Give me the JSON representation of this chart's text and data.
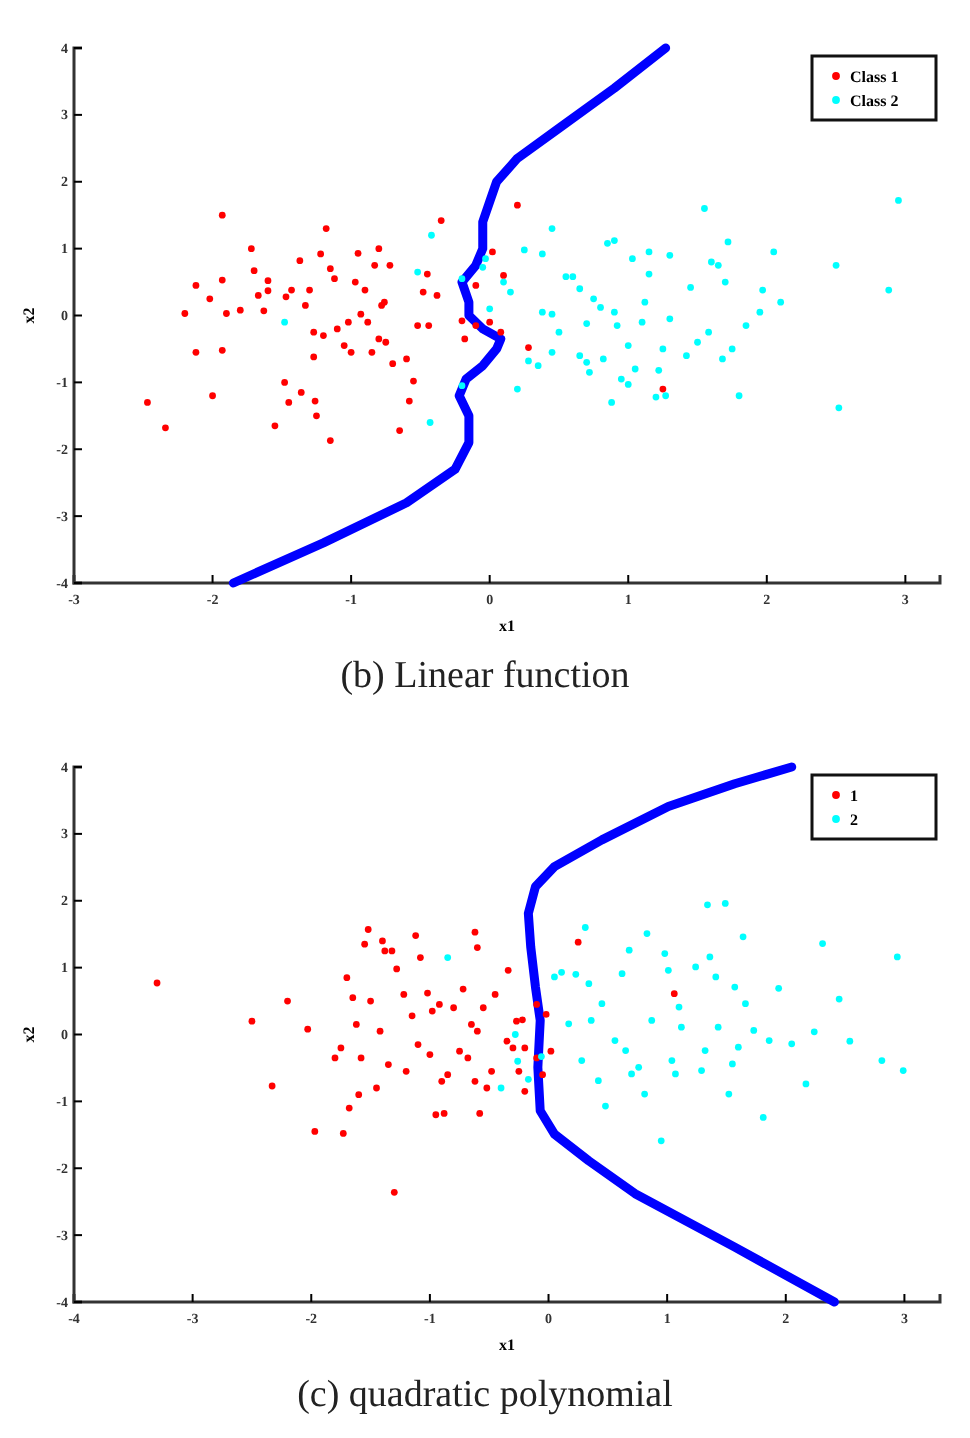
{
  "chart_data": [
    {
      "type": "scatter",
      "title": "(b) Linear function",
      "xlabel": "x1",
      "ylabel": "x2",
      "xlim": [
        -3,
        3.25
      ],
      "ylim": [
        -4,
        4
      ],
      "xticks": [
        -3,
        -2,
        -1,
        0,
        1,
        2,
        3
      ],
      "yticks": [
        -4,
        -3,
        -2,
        -1,
        0,
        1,
        2,
        3,
        4
      ],
      "legend": "top right",
      "marker": "circle",
      "series": [
        {
          "name": "Class 1",
          "color": "#ff0000",
          "x": [
            -2.47,
            -2.34,
            -2.2,
            -2.12,
            -2.12,
            -2.02,
            -2.0,
            -1.93,
            -1.93,
            -1.93,
            -1.9,
            -1.8,
            -1.72,
            -1.7,
            -1.67,
            -1.63,
            -1.6,
            -1.6,
            -1.55,
            -1.48,
            -1.47,
            -1.45,
            -1.43,
            -1.37,
            -1.36,
            -1.33,
            -1.3,
            -1.27,
            -1.27,
            -1.26,
            -1.25,
            -1.22,
            -1.2,
            -1.18,
            -1.15,
            -1.15,
            -1.12,
            -1.1,
            -1.05,
            -1.02,
            -1.0,
            -0.97,
            -0.95,
            -0.93,
            -0.9,
            -0.88,
            -0.85,
            -0.83,
            -0.8,
            -0.8,
            -0.78,
            -0.76,
            -0.75,
            -0.72,
            -0.7,
            -0.65,
            -0.6,
            -0.58,
            -0.55,
            -0.52,
            -0.48,
            -0.45,
            -0.44,
            -0.38,
            -0.35,
            -0.2,
            -0.18,
            -0.1,
            -0.1,
            0.0,
            0.02,
            0.1,
            0.08,
            0.2,
            0.28,
            1.25
          ],
          "values": [
            -1.3,
            -1.68,
            0.03,
            0.45,
            -0.55,
            0.25,
            -1.2,
            1.5,
            0.53,
            -0.52,
            0.03,
            0.08,
            1.0,
            0.67,
            0.3,
            0.07,
            0.52,
            0.37,
            -1.65,
            -1.0,
            0.28,
            -1.3,
            0.38,
            0.82,
            -1.15,
            0.15,
            0.38,
            -0.62,
            -0.25,
            -1.28,
            -1.5,
            0.92,
            -0.3,
            1.3,
            0.7,
            -1.87,
            0.55,
            -0.2,
            -0.45,
            -0.1,
            -0.55,
            0.5,
            0.93,
            0.02,
            0.38,
            -0.1,
            -0.55,
            0.75,
            1.0,
            -0.35,
            0.15,
            0.2,
            -0.4,
            0.75,
            -0.72,
            -1.72,
            -0.65,
            -1.28,
            -0.98,
            -0.15,
            0.35,
            0.62,
            -0.15,
            0.3,
            1.42,
            -0.08,
            -0.35,
            0.45,
            -0.15,
            -0.1,
            0.95,
            0.6,
            -0.25,
            1.65,
            -0.48,
            -1.1
          ]
        },
        {
          "name": "Class 2",
          "color": "#00ffff",
          "x": [
            -1.48,
            -0.52,
            -0.42,
            -0.43,
            -0.2,
            -0.2,
            -0.05,
            0.0,
            -0.03,
            0.1,
            0.15,
            0.2,
            0.25,
            0.28,
            0.35,
            0.38,
            0.38,
            0.45,
            0.45,
            0.45,
            0.5,
            0.55,
            0.6,
            0.65,
            0.65,
            0.7,
            0.7,
            0.72,
            0.75,
            0.8,
            0.82,
            0.85,
            0.88,
            0.9,
            0.9,
            0.92,
            0.95,
            1.0,
            1.0,
            1.03,
            1.05,
            1.1,
            1.12,
            1.15,
            1.15,
            1.2,
            1.22,
            1.25,
            1.27,
            1.3,
            1.3,
            1.42,
            1.45,
            1.5,
            1.55,
            1.58,
            1.6,
            1.65,
            1.68,
            1.7,
            1.72,
            1.75,
            1.8,
            1.85,
            1.95,
            1.97,
            2.05,
            2.1,
            2.5,
            2.52,
            2.88,
            2.95
          ],
          "values": [
            -0.1,
            0.65,
            1.2,
            -1.6,
            0.55,
            -1.05,
            0.72,
            0.1,
            0.85,
            0.5,
            0.35,
            -1.1,
            0.98,
            -0.68,
            -0.75,
            0.92,
            0.05,
            1.3,
            -0.55,
            0.02,
            -0.25,
            0.58,
            0.58,
            0.4,
            -0.6,
            -0.12,
            -0.7,
            -0.85,
            0.25,
            0.12,
            -0.65,
            1.08,
            -1.3,
            0.05,
            1.12,
            -0.15,
            -0.95,
            -0.45,
            -1.03,
            0.85,
            -0.8,
            -0.1,
            0.2,
            0.95,
            0.62,
            -1.22,
            -0.82,
            -0.5,
            -1.2,
            0.9,
            -0.05,
            -0.6,
            0.42,
            -0.4,
            1.6,
            -0.25,
            0.8,
            0.75,
            -0.65,
            0.5,
            1.1,
            -0.5,
            -1.2,
            -0.15,
            0.05,
            0.38,
            0.95,
            0.2,
            0.75,
            -1.38,
            0.38,
            1.72
          ]
        },
        {
          "type": "line",
          "marker": "none",
          "color": "#0000ff",
          "x": [
            -1.85,
            -1.2,
            -0.6,
            -0.25,
            -0.15,
            -0.15,
            -0.22,
            -0.17,
            -0.05,
            0.05,
            0.08,
            -0.05,
            -0.15,
            -0.15,
            -0.2,
            -0.1,
            -0.05,
            -0.05,
            0.0,
            0.05,
            0.2,
            0.5,
            0.9,
            1.27
          ],
          "values": [
            -4,
            -3.4,
            -2.8,
            -2.3,
            -1.9,
            -1.5,
            -1.2,
            -0.95,
            -0.75,
            -0.5,
            -0.35,
            -0.2,
            0,
            0.2,
            0.5,
            0.75,
            1.0,
            1.4,
            1.7,
            2.0,
            2.35,
            2.8,
            3.4,
            4.0
          ]
        }
      ]
    },
    {
      "type": "scatter",
      "title": "(c) quadratic polynomial",
      "xlabel": "x1",
      "ylabel": "x2",
      "xlim": [
        -4,
        3.3
      ],
      "ylim": [
        -4,
        4
      ],
      "xticks": [
        -4,
        -3,
        -2,
        -1,
        0,
        1,
        2,
        3
      ],
      "yticks": [
        -4,
        -3,
        -2,
        -1,
        0,
        1,
        2,
        3,
        4
      ],
      "legend": "top right",
      "marker": "circle",
      "series": [
        {
          "name": "1",
          "color": "#ff0000",
          "x": [
            -3.3,
            -2.5,
            -2.33,
            -2.2,
            -2.03,
            -1.97,
            -1.8,
            -1.75,
            -1.73,
            -1.7,
            -1.68,
            -1.65,
            -1.62,
            -1.6,
            -1.58,
            -1.55,
            -1.52,
            -1.5,
            -1.45,
            -1.42,
            -1.4,
            -1.38,
            -1.35,
            -1.32,
            -1.3,
            -1.28,
            -1.22,
            -1.2,
            -1.15,
            -1.12,
            -1.1,
            -1.08,
            -1.02,
            -1.0,
            -0.98,
            -0.95,
            -0.92,
            -0.9,
            -0.88,
            -0.85,
            -0.8,
            -0.75,
            -0.72,
            -0.68,
            -0.65,
            -0.62,
            -0.6,
            -0.58,
            -0.55,
            -0.52,
            -0.48,
            -0.45,
            -0.62,
            -0.6,
            -0.35,
            -0.3,
            -0.27,
            -0.25,
            -0.22,
            -0.2,
            -0.1,
            -0.05,
            -0.02,
            -0.2,
            -0.34,
            -0.1,
            0.02,
            0.25,
            1.06
          ],
          "values": [
            0.77,
            0.2,
            -0.77,
            0.5,
            0.08,
            -1.45,
            -0.35,
            -0.2,
            -1.48,
            0.85,
            -1.1,
            0.55,
            0.15,
            -0.9,
            -0.35,
            1.35,
            1.57,
            0.5,
            -0.8,
            0.05,
            1.4,
            1.25,
            -0.45,
            1.25,
            -2.36,
            0.98,
            0.6,
            -0.55,
            0.28,
            1.48,
            -0.15,
            1.15,
            0.62,
            -0.3,
            0.35,
            -1.2,
            0.45,
            -0.7,
            -1.18,
            -0.6,
            0.4,
            -0.25,
            0.68,
            -0.35,
            0.15,
            -0.7,
            0.05,
            -1.18,
            0.4,
            -0.8,
            -0.55,
            0.6,
            1.53,
            1.3,
            -0.1,
            -0.2,
            0.2,
            -0.55,
            0.22,
            -0.2,
            -0.35,
            -0.6,
            0.3,
            -0.85,
            0.96,
            0.45,
            -0.25,
            1.38,
            0.61
          ]
        },
        {
          "name": "2",
          "color": "#00ffff",
          "x": [
            -0.85,
            -0.4,
            -0.28,
            -0.26,
            -0.17,
            -0.06,
            0.05,
            0.11,
            0.17,
            0.23,
            0.31,
            0.34,
            0.28,
            0.36,
            0.42,
            0.45,
            0.48,
            0.56,
            0.62,
            0.65,
            0.68,
            0.7,
            0.76,
            0.81,
            0.83,
            0.87,
            0.95,
            0.98,
            1.01,
            1.04,
            1.07,
            1.1,
            1.12,
            1.24,
            1.29,
            1.32,
            1.34,
            1.36,
            1.41,
            1.43,
            1.49,
            1.52,
            1.55,
            1.57,
            1.6,
            1.64,
            1.66,
            1.73,
            1.81,
            1.86,
            1.94,
            2.05,
            2.17,
            2.24,
            2.31,
            2.45,
            2.54,
            2.81,
            2.94,
            2.99
          ],
          "values": [
            1.15,
            -0.8,
            0,
            -0.4,
            -0.67,
            -0.33,
            0.86,
            0.93,
            0.16,
            0.9,
            1.6,
            0.76,
            -0.39,
            0.21,
            -0.69,
            0.46,
            -1.07,
            -0.09,
            0.91,
            -0.24,
            1.26,
            -0.59,
            -0.49,
            -0.89,
            1.51,
            0.21,
            -1.59,
            1.21,
            0.96,
            -0.39,
            -0.59,
            0.41,
            0.11,
            1.01,
            -0.54,
            -0.24,
            1.94,
            1.16,
            0.86,
            0.11,
            1.96,
            -0.89,
            -0.44,
            0.71,
            -0.19,
            1.46,
            0.46,
            0.06,
            -1.24,
            -0.09,
            0.69,
            -0.14,
            -0.74,
            0.04,
            1.36,
            0.53,
            -0.1,
            -0.39,
            1.16,
            -0.54
          ]
        },
        {
          "type": "line",
          "marker": "none",
          "color": "#0000ff",
          "x": [
            2.41,
            1.57,
            0.73,
            0.34,
            0.05,
            -0.07,
            -0.09,
            -0.07,
            -0.11,
            -0.15,
            -0.17,
            -0.11,
            0.05,
            0.45,
            1.01,
            1.57,
            2.05
          ],
          "values": [
            -4,
            -3.18,
            -2.38,
            -1.89,
            -1.49,
            -1.14,
            -0.49,
            0.21,
            0.71,
            1.31,
            1.81,
            2.21,
            2.51,
            2.91,
            3.41,
            3.75,
            4.0
          ]
        }
      ]
    }
  ]
}
